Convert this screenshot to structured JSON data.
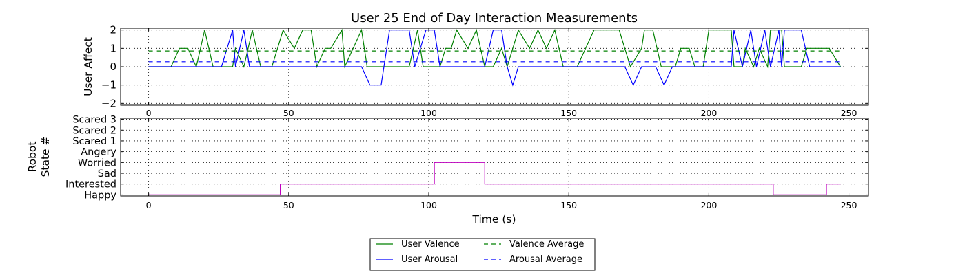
{
  "chart_data": [
    {
      "type": "line",
      "title": "User 25 End of Day Interaction Measurements",
      "xlabel": "",
      "ylabel": "User Affect",
      "xlim": [
        -10,
        257
      ],
      "ylim": [
        -2.1,
        2.1
      ],
      "xticks": [
        0,
        50,
        100,
        150,
        200,
        250
      ],
      "yticks": [
        -2,
        -1,
        0,
        1,
        2
      ],
      "grid": true,
      "series": [
        {
          "name": "User Valence",
          "color": "#008000",
          "style": "solid",
          "points": [
            [
              0,
              0
            ],
            [
              8,
              0
            ],
            [
              11,
              1
            ],
            [
              14,
              1
            ],
            [
              17,
              0
            ],
            [
              20,
              2
            ],
            [
              23,
              0
            ],
            [
              26,
              0
            ],
            [
              28,
              0
            ],
            [
              30,
              0
            ],
            [
              31,
              1
            ],
            [
              34,
              0
            ],
            [
              37,
              2
            ],
            [
              40,
              0
            ],
            [
              44,
              0
            ],
            [
              46,
              1
            ],
            [
              48,
              2
            ],
            [
              52,
              1
            ],
            [
              55,
              2
            ],
            [
              58,
              2
            ],
            [
              60,
              0
            ],
            [
              63,
              1
            ],
            [
              65,
              1
            ],
            [
              69,
              2
            ],
            [
              70,
              0
            ],
            [
              73,
              1
            ],
            [
              76,
              2
            ],
            [
              78,
              0
            ],
            [
              88,
              0
            ],
            [
              93,
              0
            ],
            [
              96,
              2
            ],
            [
              98,
              0
            ],
            [
              101,
              0
            ],
            [
              104,
              0
            ],
            [
              106,
              1
            ],
            [
              108,
              1
            ],
            [
              110,
              2
            ],
            [
              114,
              1
            ],
            [
              117,
              2
            ],
            [
              120,
              0
            ],
            [
              123,
              0
            ],
            [
              126,
              1
            ],
            [
              128,
              0
            ],
            [
              132,
              2
            ],
            [
              136,
              1
            ],
            [
              139,
              2
            ],
            [
              142,
              1
            ],
            [
              145,
              2
            ],
            [
              148,
              0
            ],
            [
              153,
              0
            ],
            [
              156,
              1
            ],
            [
              159,
              2
            ],
            [
              168,
              2
            ],
            [
              172,
              0
            ],
            [
              176,
              1
            ],
            [
              177,
              2
            ],
            [
              180,
              2
            ],
            [
              183,
              0
            ],
            [
              188,
              0
            ],
            [
              190,
              1
            ],
            [
              193,
              1
            ],
            [
              195,
              0
            ],
            [
              198,
              0
            ],
            [
              200,
              2
            ],
            [
              208,
              2
            ],
            [
              209,
              0
            ],
            [
              212,
              0
            ],
            [
              213,
              1
            ],
            [
              216,
              0
            ],
            [
              218,
              1
            ],
            [
              221,
              0
            ],
            [
              222,
              2
            ],
            [
              226,
              2
            ],
            [
              227,
              0
            ],
            [
              233,
              0
            ],
            [
              235,
              1
            ],
            [
              243,
              1
            ],
            [
              247,
              0
            ]
          ]
        },
        {
          "name": "User Arousal",
          "color": "#0000ff",
          "style": "solid",
          "points": [
            [
              0,
              0
            ],
            [
              12,
              0
            ],
            [
              26,
              0
            ],
            [
              30,
              2
            ],
            [
              31,
              0
            ],
            [
              34,
              2
            ],
            [
              36,
              0
            ],
            [
              50,
              0
            ],
            [
              76,
              0
            ],
            [
              79,
              -1
            ],
            [
              83,
              -1
            ],
            [
              86,
              2
            ],
            [
              93,
              2
            ],
            [
              95,
              0
            ],
            [
              99,
              2
            ],
            [
              102,
              2
            ],
            [
              104,
              0
            ],
            [
              120,
              0
            ],
            [
              123,
              2
            ],
            [
              126,
              2
            ],
            [
              128,
              0
            ],
            [
              130,
              -1
            ],
            [
              132,
              0
            ],
            [
              170,
              0
            ],
            [
              173,
              -1
            ],
            [
              176,
              0
            ],
            [
              181,
              0
            ],
            [
              184,
              -1
            ],
            [
              187,
              0
            ],
            [
              208,
              0
            ],
            [
              209,
              2
            ],
            [
              212,
              0
            ],
            [
              215,
              2
            ],
            [
              217,
              0
            ],
            [
              220,
              2
            ],
            [
              222,
              0
            ],
            [
              225,
              2
            ],
            [
              226,
              0
            ],
            [
              227,
              2
            ],
            [
              233,
              2
            ],
            [
              236,
              0
            ],
            [
              247,
              0
            ]
          ]
        },
        {
          "name": "Valence Average",
          "color": "#008000",
          "style": "dashed",
          "points": [
            [
              0,
              0.86
            ],
            [
              247,
              0.86
            ]
          ]
        },
        {
          "name": "Arousal Average",
          "color": "#0000ff",
          "style": "dashed",
          "points": [
            [
              0,
              0.27
            ],
            [
              247,
              0.27
            ]
          ]
        }
      ],
      "legend": {
        "position": "bottom-center",
        "entries": [
          "User Valence",
          "User Arousal",
          "Valence Average",
          "Arousal Average"
        ]
      }
    },
    {
      "type": "line",
      "title": "",
      "xlabel": "Time (s)",
      "ylabel": [
        "Robot",
        "State #"
      ],
      "xlim": [
        -10,
        257
      ],
      "xticks": [
        0,
        50,
        100,
        150,
        200,
        250
      ],
      "ylim": [
        -0.1,
        7.1
      ],
      "yticklabels": [
        "Happy",
        "Interested",
        "Sad",
        "Worried",
        "Angery",
        "Scared 1",
        "Scared 2",
        "Scared 3"
      ],
      "grid": true,
      "series": [
        {
          "name": "",
          "color": "#bf00bf",
          "style": "steps",
          "points": [
            [
              0,
              0
            ],
            [
              47,
              0
            ],
            [
              47,
              1
            ],
            [
              102,
              1
            ],
            [
              102,
              3
            ],
            [
              120,
              3
            ],
            [
              120,
              1
            ],
            [
              223,
              1
            ],
            [
              223,
              0
            ],
            [
              242,
              0
            ],
            [
              242,
              1
            ],
            [
              247,
              1
            ]
          ]
        }
      ]
    }
  ]
}
